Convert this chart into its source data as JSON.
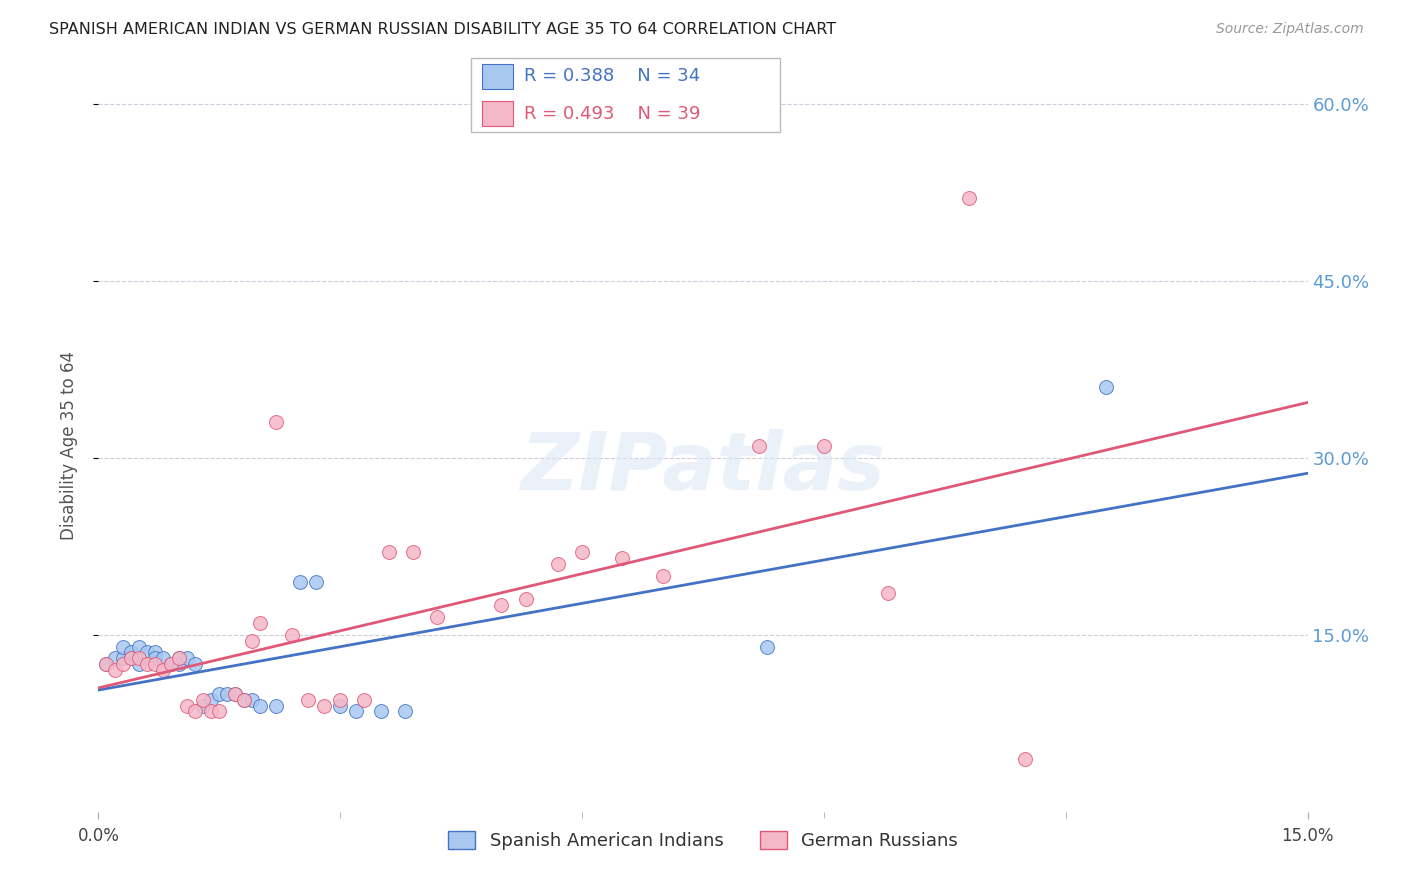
{
  "title": "SPANISH AMERICAN INDIAN VS GERMAN RUSSIAN DISABILITY AGE 35 TO 64 CORRELATION CHART",
  "source": "Source: ZipAtlas.com",
  "ylabel": "Disability Age 35 to 64",
  "xmin": 0.0,
  "xmax": 0.15,
  "ymin": 0.0,
  "ymax": 0.62,
  "yticks_right": [
    0.15,
    0.3,
    0.45,
    0.6
  ],
  "ytick_labels_right": [
    "15.0%",
    "30.0%",
    "45.0%",
    "60.0%"
  ],
  "series1_label": "Spanish American Indians",
  "series1_color": "#a8c8f0",
  "series1_R": "R = 0.388",
  "series1_N": "N = 34",
  "series2_label": "German Russians",
  "series2_color": "#f5b8c8",
  "series2_R": "R = 0.493",
  "series2_N": "N = 39",
  "line1_color": "#4472c4",
  "line2_color": "#e05878",
  "watermark": "ZIPatlas",
  "background_color": "#ffffff",
  "grid_color": "#ccccdd",
  "axis_label_color": "#5b9bd5",
  "scatter_size": 100,
  "series1_x": [
    0.001,
    0.002,
    0.003,
    0.003,
    0.004,
    0.004,
    0.005,
    0.005,
    0.006,
    0.007,
    0.007,
    0.008,
    0.009,
    0.01,
    0.01,
    0.011,
    0.012,
    0.013,
    0.014,
    0.015,
    0.016,
    0.017,
    0.018,
    0.019,
    0.02,
    0.022,
    0.025,
    0.027,
    0.03,
    0.032,
    0.035,
    0.038,
    0.083,
    0.125
  ],
  "series1_y": [
    0.125,
    0.13,
    0.13,
    0.14,
    0.135,
    0.13,
    0.14,
    0.125,
    0.135,
    0.135,
    0.13,
    0.13,
    0.125,
    0.125,
    0.13,
    0.13,
    0.125,
    0.09,
    0.095,
    0.1,
    0.1,
    0.1,
    0.095,
    0.095,
    0.09,
    0.09,
    0.195,
    0.195,
    0.09,
    0.085,
    0.085,
    0.085,
    0.14,
    0.36
  ],
  "series2_x": [
    0.001,
    0.002,
    0.003,
    0.004,
    0.005,
    0.006,
    0.007,
    0.008,
    0.009,
    0.01,
    0.011,
    0.012,
    0.013,
    0.014,
    0.015,
    0.017,
    0.018,
    0.019,
    0.02,
    0.022,
    0.024,
    0.026,
    0.028,
    0.03,
    0.033,
    0.036,
    0.039,
    0.042,
    0.05,
    0.053,
    0.057,
    0.06,
    0.065,
    0.07,
    0.082,
    0.09,
    0.098,
    0.108,
    0.115
  ],
  "series2_y": [
    0.125,
    0.12,
    0.125,
    0.13,
    0.13,
    0.125,
    0.125,
    0.12,
    0.125,
    0.13,
    0.09,
    0.085,
    0.095,
    0.085,
    0.085,
    0.1,
    0.095,
    0.145,
    0.16,
    0.33,
    0.15,
    0.095,
    0.09,
    0.095,
    0.095,
    0.22,
    0.22,
    0.165,
    0.175,
    0.18,
    0.21,
    0.22,
    0.215,
    0.2,
    0.31,
    0.31,
    0.185,
    0.52,
    0.045
  ]
}
